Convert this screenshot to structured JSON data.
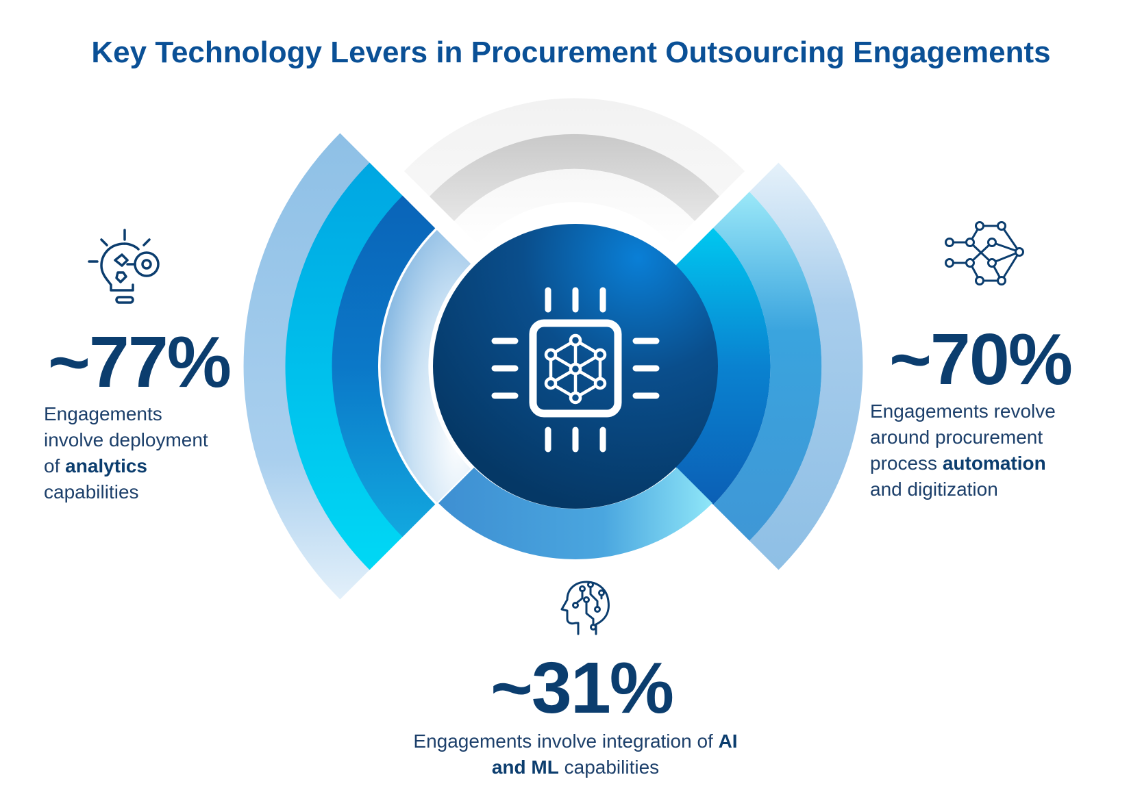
{
  "title": "Key Technology Levers in Procurement Outsourcing Engagements",
  "colors": {
    "title": "#0a5096",
    "stat": "#0b3d6e",
    "center": "#0a3f73",
    "ring_light": "#8fbde4",
    "ring_cyan": "#00aee8",
    "ring_blue": "#0b6fc1",
    "ring_grey": "#e6e6e6"
  },
  "levers": {
    "analytics": {
      "icon": "lightbulb-gear-icon",
      "value": "~77%",
      "desc_1": "Engagements",
      "desc_2": "involve deployment",
      "desc_3a": "of ",
      "desc_3b": "analytics",
      "desc_4": "capabilities"
    },
    "automation": {
      "icon": "network-nodes-icon",
      "value": "~70%",
      "desc_1": "Engagements revolve",
      "desc_2": "around procurement",
      "desc_3a": "process ",
      "desc_3b": "automation",
      "desc_4": "and digitization"
    },
    "ai_ml": {
      "icon": "ai-head-icon",
      "value": "~31%",
      "desc_1a": "Engagements involve integration of ",
      "desc_1b": "AI",
      "desc_2a": "and ML",
      "desc_2b": " capabilities"
    }
  },
  "center_icon": "processor-chip-icon"
}
